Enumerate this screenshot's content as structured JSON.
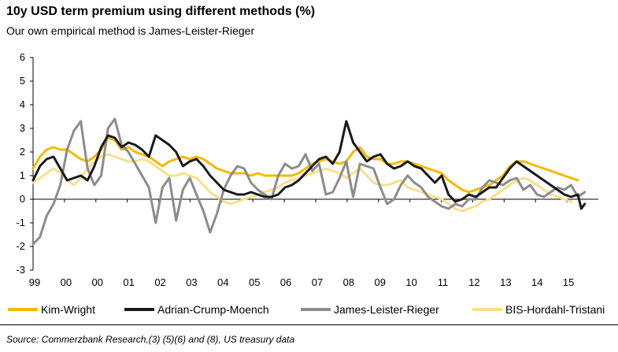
{
  "chart_data": {
    "type": "line",
    "title": "10y USD term premium using different methods (%)",
    "subtitle": "Our own empirical method is James-Leister-Rieger",
    "source": "Source: Commerzbank Research,(3) (5)(6) and (8), US treasury data",
    "xlabel": "",
    "ylabel": "",
    "ylim": [
      -3,
      6
    ],
    "yticks": [
      "6",
      "5",
      "4",
      "3",
      "2",
      "1",
      "0",
      "-1",
      "-2",
      "-3"
    ],
    "xlim": [
      1999.0,
      2015.6
    ],
    "xticks": [
      "99",
      "00",
      "00",
      "01",
      "02",
      "03",
      "04",
      "05",
      "06",
      "07",
      "08",
      "09",
      "10",
      "11",
      "12",
      "13",
      "14",
      "15"
    ],
    "grid": false,
    "legend": "bottom",
    "series": [
      {
        "name": "Kim-Wright",
        "color": "#f5b800",
        "x": [
          1999.0,
          1999.2,
          1999.4,
          1999.6,
          1999.8,
          2000.0,
          2000.2,
          2000.4,
          2000.6,
          2000.8,
          2001.0,
          2001.2,
          2001.4,
          2001.6,
          2001.8,
          2002.0,
          2002.2,
          2002.4,
          2002.6,
          2002.8,
          2003.0,
          2003.2,
          2003.4,
          2003.6,
          2003.8,
          2004.0,
          2004.2,
          2004.4,
          2004.6,
          2004.8,
          2005.0,
          2005.2,
          2005.4,
          2005.6,
          2005.8,
          2006.0,
          2006.2,
          2006.4,
          2006.6,
          2006.8,
          2007.0,
          2007.2,
          2007.4,
          2007.6,
          2007.8,
          2008.0,
          2008.2,
          2008.4,
          2008.6,
          2008.8,
          2009.0,
          2009.2,
          2009.4,
          2009.6,
          2009.8,
          2010.0,
          2010.2,
          2010.4,
          2010.6,
          2010.8,
          2011.0,
          2011.2,
          2011.4,
          2011.6,
          2011.8,
          2012.0,
          2012.2,
          2012.4,
          2012.6,
          2012.8,
          2013.0,
          2013.2,
          2013.4,
          2013.6,
          2013.8,
          2014.0,
          2014.2,
          2014.4,
          2014.6,
          2014.8,
          2015.0
        ],
        "values": [
          1.3,
          1.8,
          2.1,
          2.2,
          2.1,
          2.1,
          1.9,
          1.7,
          1.6,
          1.8,
          2.1,
          2.6,
          2.5,
          2.1,
          2.2,
          2.0,
          1.9,
          1.8,
          1.6,
          1.4,
          1.6,
          1.7,
          1.8,
          1.7,
          1.8,
          1.7,
          1.5,
          1.3,
          1.2,
          1.1,
          1.1,
          1.1,
          1.0,
          1.1,
          1.0,
          1.0,
          1.0,
          1.0,
          1.0,
          1.1,
          1.3,
          1.5,
          1.6,
          1.7,
          1.6,
          1.5,
          1.6,
          2.0,
          2.2,
          1.8,
          1.7,
          1.7,
          1.5,
          1.5,
          1.6,
          1.6,
          1.5,
          1.4,
          1.3,
          1.2,
          1.1,
          0.8,
          0.6,
          0.4,
          0.3,
          0.4,
          0.5,
          0.6,
          0.8,
          1.0,
          1.4,
          1.6,
          1.6,
          1.5,
          1.4,
          1.3,
          1.2,
          1.1,
          1.0,
          0.9,
          0.8
        ]
      },
      {
        "name": "Adrian-Crump-Moench",
        "color": "#1a1a1a",
        "x": [
          1999.0,
          1999.2,
          1999.4,
          1999.6,
          1999.8,
          2000.0,
          2000.2,
          2000.4,
          2000.6,
          2000.8,
          2001.0,
          2001.2,
          2001.4,
          2001.6,
          2001.8,
          2002.0,
          2002.2,
          2002.4,
          2002.6,
          2002.8,
          2003.0,
          2003.2,
          2003.4,
          2003.6,
          2003.8,
          2004.0,
          2004.2,
          2004.4,
          2004.6,
          2004.8,
          2005.0,
          2005.2,
          2005.4,
          2005.6,
          2005.8,
          2006.0,
          2006.2,
          2006.4,
          2006.6,
          2006.8,
          2007.0,
          2007.2,
          2007.4,
          2007.6,
          2007.8,
          2008.0,
          2008.2,
          2008.4,
          2008.6,
          2008.8,
          2009.0,
          2009.2,
          2009.4,
          2009.6,
          2009.8,
          2010.0,
          2010.2,
          2010.4,
          2010.6,
          2010.8,
          2011.0,
          2011.2,
          2011.4,
          2011.6,
          2011.8,
          2012.0,
          2012.2,
          2012.4,
          2012.6,
          2012.8,
          2013.0,
          2013.2,
          2013.4,
          2013.6,
          2013.8,
          2014.0,
          2014.2,
          2014.4,
          2014.6,
          2014.8,
          2015.0,
          2015.1,
          2015.2
        ],
        "values": [
          0.8,
          1.4,
          1.7,
          1.8,
          1.3,
          0.8,
          0.9,
          1.0,
          0.8,
          1.4,
          2.2,
          2.7,
          2.6,
          2.2,
          2.4,
          2.3,
          2.1,
          1.8,
          2.7,
          2.5,
          2.3,
          2.0,
          1.4,
          1.6,
          1.7,
          1.4,
          1.0,
          0.7,
          0.4,
          0.3,
          0.2,
          0.2,
          0.3,
          0.2,
          0.1,
          0.1,
          0.2,
          0.5,
          0.6,
          0.8,
          1.1,
          1.4,
          1.7,
          1.8,
          1.5,
          2.0,
          3.3,
          2.4,
          2.0,
          1.6,
          1.8,
          1.9,
          1.5,
          1.3,
          1.4,
          1.6,
          1.4,
          1.3,
          1.0,
          0.7,
          1.0,
          0.2,
          -0.1,
          0.0,
          0.2,
          0.1,
          0.3,
          0.5,
          0.5,
          0.9,
          1.3,
          1.6,
          1.4,
          1.2,
          1.0,
          0.8,
          0.6,
          0.4,
          0.2,
          0.1,
          0.2,
          -0.4,
          -0.2
        ]
      },
      {
        "name": "James-Leister-Rieger",
        "color": "#8c8c8c",
        "x": [
          1999.0,
          1999.2,
          1999.4,
          1999.6,
          1999.8,
          2000.0,
          2000.2,
          2000.4,
          2000.6,
          2000.8,
          2001.0,
          2001.2,
          2001.4,
          2001.6,
          2001.8,
          2002.0,
          2002.2,
          2002.4,
          2002.6,
          2002.8,
          2003.0,
          2003.2,
          2003.4,
          2003.6,
          2003.8,
          2004.0,
          2004.2,
          2004.4,
          2004.6,
          2004.8,
          2005.0,
          2005.2,
          2005.4,
          2005.6,
          2005.8,
          2006.0,
          2006.2,
          2006.4,
          2006.6,
          2006.8,
          2007.0,
          2007.2,
          2007.4,
          2007.6,
          2007.8,
          2008.0,
          2008.2,
          2008.4,
          2008.6,
          2008.8,
          2009.0,
          2009.2,
          2009.4,
          2009.6,
          2009.8,
          2010.0,
          2010.2,
          2010.4,
          2010.6,
          2010.8,
          2011.0,
          2011.2,
          2011.4,
          2011.6,
          2011.8,
          2012.0,
          2012.2,
          2012.4,
          2012.6,
          2012.8,
          2013.0,
          2013.2,
          2013.4,
          2013.6,
          2013.8,
          2014.0,
          2014.2,
          2014.4,
          2014.6,
          2014.8,
          2015.0,
          2015.2
        ],
        "values": [
          -1.9,
          -1.6,
          -0.7,
          -0.2,
          0.6,
          2.1,
          2.9,
          3.3,
          1.3,
          0.6,
          1.0,
          3.0,
          3.4,
          2.3,
          2.0,
          1.5,
          1.0,
          0.5,
          -1.0,
          0.5,
          0.9,
          -0.9,
          0.4,
          0.9,
          0.2,
          -0.5,
          -1.4,
          -0.6,
          0.4,
          1.0,
          1.4,
          1.3,
          0.7,
          0.4,
          0.2,
          0.0,
          1.0,
          1.5,
          1.3,
          1.4,
          1.9,
          1.2,
          1.5,
          0.2,
          0.3,
          0.9,
          1.6,
          0.1,
          1.5,
          1.4,
          1.3,
          0.5,
          -0.2,
          0.0,
          0.6,
          1.0,
          0.7,
          0.5,
          0.1,
          -0.1,
          -0.3,
          -0.4,
          -0.2,
          -0.3,
          0.0,
          0.0,
          0.5,
          0.8,
          0.7,
          0.6,
          0.8,
          0.9,
          0.4,
          0.6,
          0.2,
          0.1,
          0.3,
          0.5,
          0.4,
          0.6,
          0.1,
          0.3
        ]
      },
      {
        "name": "BIS-Hordahl-Tristani",
        "color": "#f7e08a",
        "x": [
          1999.0,
          1999.2,
          1999.4,
          1999.6,
          1999.8,
          2000.0,
          2000.2,
          2000.4,
          2000.6,
          2000.8,
          2001.0,
          2001.2,
          2001.4,
          2001.6,
          2001.8,
          2002.0,
          2002.2,
          2002.4,
          2002.6,
          2002.8,
          2003.0,
          2003.2,
          2003.4,
          2003.6,
          2003.8,
          2004.0,
          2004.2,
          2004.4,
          2004.6,
          2004.8,
          2005.0,
          2005.2,
          2005.4,
          2005.6,
          2005.8,
          2006.0,
          2006.2,
          2006.4,
          2006.6,
          2006.8,
          2007.0,
          2007.2,
          2007.4,
          2007.6,
          2007.8,
          2008.0,
          2008.2,
          2008.4,
          2008.6,
          2008.8,
          2009.0,
          2009.2,
          2009.4,
          2009.6,
          2009.8,
          2010.0,
          2010.2,
          2010.4,
          2010.6,
          2010.8,
          2011.0,
          2011.2,
          2011.4,
          2011.6,
          2011.8,
          2012.0,
          2012.2,
          2012.4,
          2012.6,
          2012.8,
          2013.0,
          2013.2,
          2013.4,
          2013.6,
          2013.8,
          2014.0,
          2014.2,
          2014.4,
          2014.6,
          2014.8
        ],
        "values": [
          0.7,
          0.9,
          1.1,
          1.3,
          1.1,
          0.8,
          0.6,
          0.9,
          1.3,
          1.6,
          1.8,
          1.9,
          1.8,
          1.7,
          1.6,
          1.6,
          1.7,
          1.6,
          1.4,
          1.2,
          1.0,
          1.0,
          1.1,
          1.0,
          0.9,
          0.6,
          0.3,
          0.1,
          -0.1,
          -0.2,
          -0.1,
          0.0,
          0.1,
          0.2,
          0.3,
          0.4,
          0.5,
          0.7,
          0.8,
          0.9,
          1.0,
          1.1,
          1.2,
          1.3,
          1.2,
          1.1,
          0.9,
          1.1,
          1.3,
          1.0,
          0.7,
          0.6,
          0.6,
          0.7,
          0.8,
          0.5,
          0.4,
          0.3,
          0.2,
          0.1,
          0.0,
          -0.2,
          -0.4,
          -0.5,
          -0.4,
          -0.3,
          -0.1,
          0.0,
          0.2,
          0.4,
          0.6,
          0.8,
          0.9,
          0.8,
          0.6,
          0.4,
          0.2,
          0.1,
          0.0,
          -0.1
        ]
      }
    ]
  }
}
